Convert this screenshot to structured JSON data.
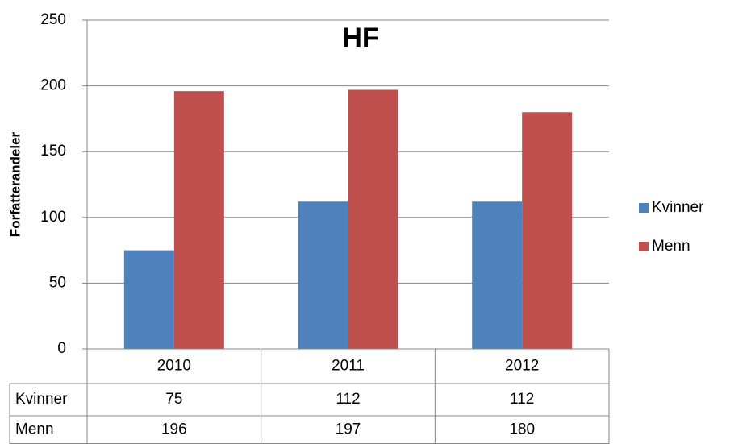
{
  "chart_data": {
    "type": "bar",
    "title": "HF",
    "y_label": "Forfatterandeler",
    "categories": [
      "2010",
      "2011",
      "2012"
    ],
    "series": [
      {
        "name": "Kvinner",
        "color": "#4f81bd",
        "values": [
          75,
          112,
          112
        ]
      },
      {
        "name": "Menn",
        "color": "#c0504d",
        "values": [
          196,
          197,
          180
        ]
      }
    ],
    "ylim": [
      0,
      250
    ],
    "yticks": [
      0,
      50,
      100,
      150,
      200,
      250
    ],
    "grid": true,
    "legend": "right",
    "data_table": true
  }
}
